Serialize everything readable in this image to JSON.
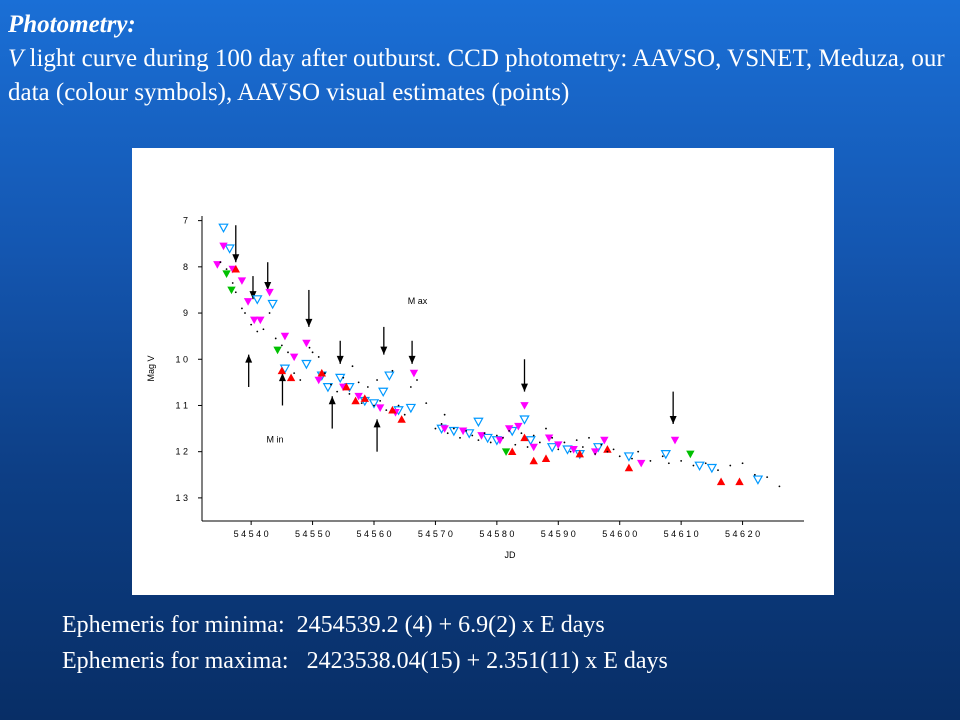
{
  "slide": {
    "heading": "Photometry:",
    "description_v": "V",
    "description_rest": "  light curve during 100 day after outburst. CCD photometry: AAVSO, VSNET, Meduza, our data (colour symbols), AAVSO visual estimates (points)"
  },
  "ephemeris": {
    "minima_label": "Ephemeris for minima:",
    "minima_value": "2454539.2 (4) + 6.9(2) x E days",
    "maxima_label": "Ephemeris for maxima:",
    "maxima_value": "2423538.04(15) + 2.351(11) x E days"
  },
  "chart_data": {
    "type": "scatter",
    "xlabel": "JD",
    "ylabel": "Mag V",
    "xlim": [
      54532,
      54630
    ],
    "ylim": [
      13.5,
      6.9
    ],
    "y_inverted": true,
    "x_ticks": [
      54540,
      54550,
      54560,
      54570,
      54580,
      54590,
      54600,
      54610,
      54620
    ],
    "x_tick_labels": [
      "5 4 5 4 0",
      "5 4 5 5 0",
      "5 4 5 6 0",
      "5 4 5 7 0",
      "5 4 5 8 0",
      "5 4 5 9 0",
      "5 4 6 0 0",
      "5 4 6 1 0",
      "5 4 6 2 0"
    ],
    "y_ticks": [
      7,
      8,
      9,
      10,
      11,
      12,
      13
    ],
    "y_tick_labels": [
      "7",
      "8",
      "9",
      "1 0",
      "1 1",
      "1 2",
      "1 3"
    ],
    "grid": false,
    "colors": {
      "ccd_cyan": "#0099ff",
      "ccd_magenta": "#ff00ff",
      "ccd_red": "#ff0000",
      "ccd_green": "#00c000",
      "visual": "#000000",
      "arrow": "#000000"
    },
    "annotations": [
      {
        "text": "M ax",
        "x": 54565.5,
        "y": 8.8
      },
      {
        "text": "M in",
        "x": 54542.5,
        "y": 11.8
      }
    ],
    "max_arrows": [
      {
        "x": 54537.5,
        "y_from": 7.1,
        "y_to": 7.9
      },
      {
        "x": 54540.3,
        "y_from": 8.2,
        "y_to": 8.7
      },
      {
        "x": 54542.7,
        "y_from": 7.9,
        "y_to": 8.5
      },
      {
        "x": 54549.4,
        "y_from": 8.5,
        "y_to": 9.3
      },
      {
        "x": 54554.5,
        "y_from": 9.6,
        "y_to": 10.1
      },
      {
        "x": 54561.6,
        "y_from": 9.3,
        "y_to": 9.9
      },
      {
        "x": 54566.2,
        "y_from": 9.6,
        "y_to": 10.1
      },
      {
        "x": 54584.5,
        "y_from": 10.0,
        "y_to": 10.7
      },
      {
        "x": 54608.7,
        "y_from": 10.7,
        "y_to": 11.4
      }
    ],
    "min_arrows": [
      {
        "x": 54539.6,
        "y_from": 10.6,
        "y_to": 9.9
      },
      {
        "x": 54545.1,
        "y_from": 11.0,
        "y_to": 10.3
      },
      {
        "x": 54553.2,
        "y_from": 11.5,
        "y_to": 10.8
      },
      {
        "x": 54560.5,
        "y_from": 12.0,
        "y_to": 11.3
      }
    ],
    "series": [
      {
        "shape": "triangle-down-open",
        "color": "#0099ff",
        "points": [
          [
            54535.5,
            7.15
          ],
          [
            54536.5,
            7.6
          ],
          [
            54541,
            8.7
          ],
          [
            54543.5,
            8.8
          ],
          [
            54545.5,
            10.2
          ],
          [
            54549,
            10.1
          ],
          [
            54551.5,
            10.35
          ],
          [
            54552.5,
            10.6
          ],
          [
            54554.5,
            10.4
          ],
          [
            54556,
            10.6
          ],
          [
            54558.5,
            10.9
          ],
          [
            54560,
            10.95
          ],
          [
            54561.5,
            10.7
          ],
          [
            54562.5,
            10.35
          ],
          [
            54564,
            11.1
          ],
          [
            54566,
            11.05
          ],
          [
            54571,
            11.5
          ],
          [
            54573,
            11.55
          ],
          [
            54575.5,
            11.6
          ],
          [
            54577,
            11.35
          ],
          [
            54578.5,
            11.7
          ],
          [
            54580,
            11.75
          ],
          [
            54582.5,
            11.55
          ],
          [
            54584.5,
            11.3
          ],
          [
            54585.5,
            11.75
          ],
          [
            54589,
            11.9
          ],
          [
            54591.5,
            11.95
          ],
          [
            54593.5,
            12.05
          ],
          [
            54596.5,
            11.9
          ],
          [
            54601.5,
            12.1
          ],
          [
            54607.5,
            12.05
          ],
          [
            54613,
            12.3
          ],
          [
            54615,
            12.35
          ],
          [
            54622.5,
            12.6
          ]
        ]
      },
      {
        "shape": "triangle-down",
        "color": "#ff00ff",
        "points": [
          [
            54534.5,
            7.95
          ],
          [
            54535.5,
            7.55
          ],
          [
            54537,
            8.05
          ],
          [
            54538.5,
            8.3
          ],
          [
            54539.5,
            8.75
          ],
          [
            54540.5,
            9.15
          ],
          [
            54541.5,
            9.15
          ],
          [
            54543,
            8.55
          ],
          [
            54545.5,
            9.5
          ],
          [
            54547,
            9.95
          ],
          [
            54549,
            9.65
          ],
          [
            54551,
            10.45
          ],
          [
            54555,
            10.6
          ],
          [
            54557.5,
            10.8
          ],
          [
            54561,
            11.05
          ],
          [
            54563.5,
            11.15
          ],
          [
            54566.5,
            10.3
          ],
          [
            54571.5,
            11.5
          ],
          [
            54574.5,
            11.55
          ],
          [
            54577.5,
            11.65
          ],
          [
            54580.5,
            11.75
          ],
          [
            54582,
            11.5
          ],
          [
            54583.5,
            11.45
          ],
          [
            54584.5,
            11.0
          ],
          [
            54586,
            11.9
          ],
          [
            54588.5,
            11.7
          ],
          [
            54590,
            11.85
          ],
          [
            54592.5,
            11.95
          ],
          [
            54596,
            12.0
          ],
          [
            54597.5,
            11.75
          ],
          [
            54603.5,
            12.25
          ],
          [
            54609,
            11.75
          ]
        ]
      },
      {
        "shape": "triangle-up",
        "color": "#ff0000",
        "points": [
          [
            54537.5,
            8.05
          ],
          [
            54545,
            10.25
          ],
          [
            54546.5,
            10.4
          ],
          [
            54551.5,
            10.3
          ],
          [
            54555.5,
            10.6
          ],
          [
            54557,
            10.9
          ],
          [
            54558.5,
            10.85
          ],
          [
            54563,
            11.1
          ],
          [
            54564.5,
            11.3
          ],
          [
            54582.5,
            12.0
          ],
          [
            54584.5,
            11.7
          ],
          [
            54586,
            12.2
          ],
          [
            54588,
            12.15
          ],
          [
            54593.5,
            12.05
          ],
          [
            54598,
            11.95
          ],
          [
            54601.5,
            12.35
          ],
          [
            54616.5,
            12.65
          ],
          [
            54619.5,
            12.65
          ]
        ]
      },
      {
        "shape": "triangle-down",
        "color": "#00c000",
        "points": [
          [
            54536,
            8.15
          ],
          [
            54536.8,
            8.5
          ],
          [
            54544.3,
            9.8
          ],
          [
            54581.5,
            12.0
          ],
          [
            54611.5,
            12.05
          ]
        ]
      },
      {
        "shape": "dot",
        "color": "#000000",
        "points": [
          [
            54535,
            7.9
          ],
          [
            54536,
            8.05
          ],
          [
            54537,
            8.35
          ],
          [
            54537.5,
            8.55
          ],
          [
            54538.5,
            8.9
          ],
          [
            54539,
            9.0
          ],
          [
            54540,
            9.25
          ],
          [
            54541,
            9.4
          ],
          [
            54542,
            9.35
          ],
          [
            54543,
            9.0
          ],
          [
            54544,
            9.55
          ],
          [
            54545,
            9.7
          ],
          [
            54546,
            9.85
          ],
          [
            54547,
            10.3
          ],
          [
            54548,
            10.45
          ],
          [
            54549.5,
            9.75
          ],
          [
            54550,
            9.85
          ],
          [
            54551,
            9.95
          ],
          [
            54552,
            10.3
          ],
          [
            54553,
            10.55
          ],
          [
            54554,
            10.7
          ],
          [
            54555,
            10.4
          ],
          [
            54556,
            10.75
          ],
          [
            54557.5,
            10.5
          ],
          [
            54558,
            10.95
          ],
          [
            54559,
            10.6
          ],
          [
            54560,
            11.0
          ],
          [
            54561,
            10.9
          ],
          [
            54562,
            11.1
          ],
          [
            54563,
            10.25
          ],
          [
            54564,
            11.0
          ],
          [
            54565,
            11.2
          ],
          [
            54566,
            10.6
          ],
          [
            54567,
            10.45
          ],
          [
            54568.5,
            10.95
          ],
          [
            54570,
            11.5
          ],
          [
            54571,
            11.4
          ],
          [
            54572,
            11.6
          ],
          [
            54573,
            11.5
          ],
          [
            54574,
            11.7
          ],
          [
            54575,
            11.55
          ],
          [
            54576,
            11.65
          ],
          [
            54577,
            11.75
          ],
          [
            54578,
            11.6
          ],
          [
            54579,
            11.8
          ],
          [
            54580,
            11.65
          ],
          [
            54581,
            11.7
          ],
          [
            54582,
            11.55
          ],
          [
            54583,
            11.85
          ],
          [
            54584,
            11.6
          ],
          [
            54585,
            11.9
          ],
          [
            54586,
            11.65
          ],
          [
            54587,
            11.8
          ],
          [
            54588,
            11.5
          ],
          [
            54589,
            11.7
          ],
          [
            54590,
            11.95
          ],
          [
            54591,
            11.8
          ],
          [
            54592,
            12.0
          ],
          [
            54593,
            11.75
          ],
          [
            54594,
            11.9
          ],
          [
            54595,
            11.7
          ],
          [
            54596,
            12.05
          ],
          [
            54597,
            11.85
          ],
          [
            54598,
            12.0
          ],
          [
            54599,
            11.95
          ],
          [
            54600,
            12.1
          ],
          [
            54602,
            12.15
          ],
          [
            54603,
            12.0
          ],
          [
            54605,
            12.2
          ],
          [
            54607,
            12.1
          ],
          [
            54608,
            12.25
          ],
          [
            54610,
            12.2
          ],
          [
            54612,
            12.3
          ],
          [
            54614,
            12.25
          ],
          [
            54616,
            12.4
          ],
          [
            54618,
            12.3
          ],
          [
            54620,
            12.25
          ],
          [
            54622,
            12.5
          ],
          [
            54624,
            12.55
          ],
          [
            54626,
            12.75
          ],
          [
            54556.5,
            10.15
          ],
          [
            54560.5,
            10.45
          ],
          [
            54571.5,
            11.2
          ]
        ]
      }
    ]
  }
}
